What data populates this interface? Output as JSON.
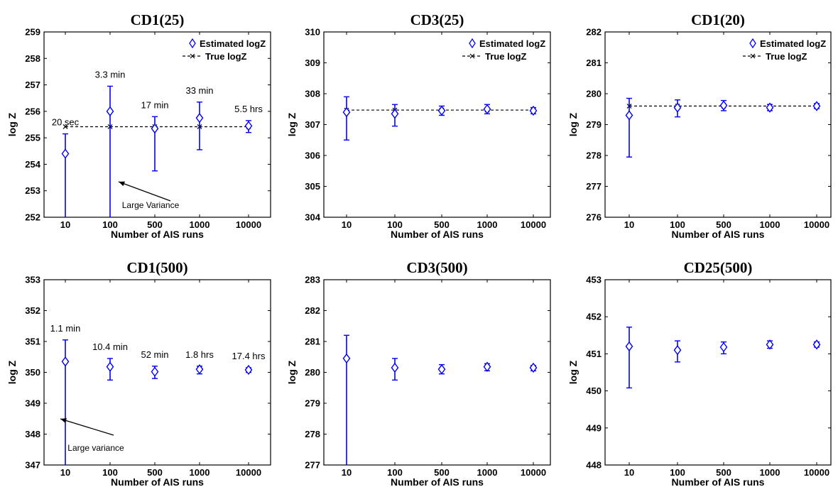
{
  "chart_data": [
    {
      "type": "scatter",
      "title": "CD1(25)",
      "xlabel": "Number of AIS runs",
      "ylabel": "log Z",
      "categories": [
        "10",
        "100",
        "500",
        "1000",
        "10000"
      ],
      "ylim": [
        252,
        259
      ],
      "yticks": [
        252,
        253,
        254,
        255,
        256,
        257,
        258,
        259
      ],
      "series": [
        {
          "name": "Estimated logZ",
          "values": [
            254.4,
            256.0,
            255.35,
            255.75,
            255.45
          ],
          "err_low": [
            252.0,
            252.0,
            253.75,
            254.55,
            255.2
          ],
          "err_high": [
            255.15,
            256.95,
            255.8,
            256.35,
            255.65
          ],
          "color": "#0000ff"
        },
        {
          "name": "True logZ",
          "values": [
            255.42,
            255.42,
            255.42,
            255.42,
            255.42
          ],
          "color": "#000000"
        }
      ],
      "point_labels": [
        "20 sec",
        "3.3 min",
        "17 min",
        "33 min",
        "5.5 hrs"
      ],
      "annotation": "Large Variance",
      "legend": "top-right"
    },
    {
      "type": "scatter",
      "title": "CD3(25)",
      "xlabel": "Number of AIS runs",
      "ylabel": "log Z",
      "categories": [
        "10",
        "100",
        "500",
        "1000",
        "10000"
      ],
      "ylim": [
        304,
        310
      ],
      "yticks": [
        304,
        305,
        306,
        307,
        308,
        309,
        310
      ],
      "series": [
        {
          "name": "Estimated logZ",
          "values": [
            307.4,
            307.35,
            307.45,
            307.5,
            307.45
          ],
          "err_low": [
            306.5,
            306.95,
            307.3,
            307.35,
            307.35
          ],
          "err_high": [
            307.9,
            307.65,
            307.6,
            307.65,
            307.55
          ],
          "color": "#0000ff"
        },
        {
          "name": "True logZ",
          "values": [
            307.47,
            307.47,
            307.47,
            307.47,
            307.47
          ],
          "color": "#000000"
        }
      ],
      "legend": "top-right"
    },
    {
      "type": "scatter",
      "title": "CD1(20)",
      "xlabel": "Number of AIS runs",
      "ylabel": "log Z",
      "categories": [
        "10",
        "100",
        "500",
        "1000",
        "10000"
      ],
      "ylim": [
        276,
        282
      ],
      "yticks": [
        276,
        277,
        278,
        279,
        280,
        281,
        282
      ],
      "series": [
        {
          "name": "Estimated logZ",
          "values": [
            279.3,
            279.55,
            279.62,
            279.55,
            279.6
          ],
          "err_low": [
            277.95,
            279.25,
            279.45,
            279.45,
            279.52
          ],
          "err_high": [
            279.85,
            279.8,
            279.78,
            279.65,
            279.68
          ],
          "color": "#0000ff"
        },
        {
          "name": "True logZ",
          "values": [
            279.6,
            279.6,
            279.6,
            279.6,
            279.6
          ],
          "color": "#000000"
        }
      ],
      "legend": "top-right"
    },
    {
      "type": "scatter",
      "title": "CD1(500)",
      "xlabel": "Number of AIS runs",
      "ylabel": "log Z",
      "categories": [
        "10",
        "100",
        "500",
        "1000",
        "10000"
      ],
      "ylim": [
        347,
        353
      ],
      "yticks": [
        347,
        348,
        349,
        350,
        351,
        352,
        353
      ],
      "series": [
        {
          "name": "Estimated logZ",
          "values": [
            350.35,
            350.18,
            350.02,
            350.1,
            350.08
          ],
          "err_low": [
            347.0,
            349.75,
            349.8,
            349.95,
            350.0
          ],
          "err_high": [
            351.05,
            350.45,
            350.2,
            350.2,
            350.15
          ],
          "color": "#0000ff"
        }
      ],
      "point_labels": [
        "1.1 min",
        "10.4 min",
        "52 min",
        "1.8 hrs",
        "17.4 hrs"
      ],
      "annotation": "Large variance"
    },
    {
      "type": "scatter",
      "title": "CD3(500)",
      "xlabel": "Number of AIS runs",
      "ylabel": "log Z",
      "categories": [
        "10",
        "100",
        "500",
        "1000",
        "10000"
      ],
      "ylim": [
        277,
        283
      ],
      "yticks": [
        277,
        278,
        279,
        280,
        281,
        282,
        283
      ],
      "series": [
        {
          "name": "Estimated logZ",
          "values": [
            280.45,
            280.15,
            280.1,
            280.18,
            280.15
          ],
          "err_low": [
            277.0,
            279.75,
            279.95,
            280.05,
            280.05
          ],
          "err_high": [
            281.2,
            280.45,
            280.25,
            280.28,
            280.22
          ],
          "color": "#0000ff"
        }
      ]
    },
    {
      "type": "scatter",
      "title": "CD25(500)",
      "xlabel": "Number of AIS runs",
      "ylabel": "log Z",
      "categories": [
        "10",
        "100",
        "500",
        "1000",
        "10000"
      ],
      "ylim": [
        448,
        453
      ],
      "yticks": [
        448,
        449,
        450,
        451,
        452,
        453
      ],
      "series": [
        {
          "name": "Estimated logZ",
          "values": [
            451.2,
            451.1,
            451.18,
            451.25,
            451.25
          ],
          "err_low": [
            450.08,
            450.78,
            451.0,
            451.15,
            451.18
          ],
          "err_high": [
            451.72,
            451.35,
            451.32,
            451.35,
            451.32
          ],
          "color": "#0000ff"
        }
      ]
    }
  ]
}
